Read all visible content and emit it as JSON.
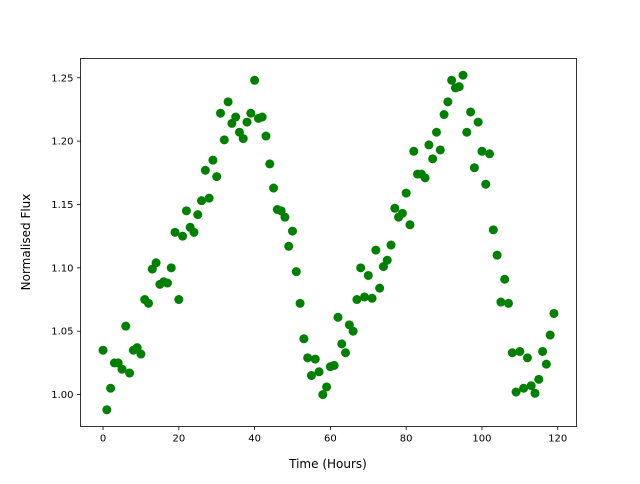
{
  "chart_data": {
    "type": "scatter",
    "title": "",
    "xlabel": "Time (Hours)",
    "ylabel": "Normalised Flux",
    "xlim": [
      -5.95,
      124.95
    ],
    "ylim": [
      0.9748,
      1.2652
    ],
    "xticks": [
      0,
      20,
      40,
      60,
      80,
      100,
      120
    ],
    "xtick_labels": [
      "0",
      "20",
      "40",
      "60",
      "80",
      "100",
      "120"
    ],
    "yticks": [
      1.0,
      1.05,
      1.1,
      1.15,
      1.2,
      1.25
    ],
    "ytick_labels": [
      "1.00",
      "1.05",
      "1.10",
      "1.15",
      "1.20",
      "1.25"
    ],
    "grid": false,
    "marker_color": "#008000",
    "x": [
      0,
      1,
      2,
      3,
      4,
      5,
      6,
      7,
      8,
      9,
      10,
      11,
      12,
      13,
      14,
      15,
      16,
      17,
      18,
      19,
      20,
      21,
      22,
      23,
      24,
      25,
      26,
      27,
      28,
      29,
      30,
      31,
      32,
      33,
      34,
      35,
      36,
      37,
      38,
      39,
      40,
      41,
      42,
      43,
      44,
      45,
      46,
      47,
      48,
      49,
      50,
      51,
      52,
      53,
      54,
      55,
      56,
      57,
      58,
      59,
      60,
      61,
      62,
      63,
      64,
      65,
      66,
      67,
      68,
      69,
      70,
      71,
      72,
      73,
      74,
      75,
      76,
      77,
      78,
      79,
      80,
      81,
      82,
      83,
      84,
      85,
      86,
      87,
      88,
      89,
      90,
      91,
      92,
      93,
      94,
      95,
      96,
      97,
      98,
      99,
      100,
      101,
      102,
      103,
      104,
      105,
      106,
      107,
      108,
      109,
      110,
      111,
      112,
      113,
      114,
      115,
      116,
      117,
      118,
      119
    ],
    "y": [
      1.035,
      0.988,
      1.005,
      1.025,
      1.025,
      1.02,
      1.054,
      1.017,
      1.035,
      1.037,
      1.032,
      1.075,
      1.072,
      1.099,
      1.104,
      1.087,
      1.089,
      1.088,
      1.1,
      1.128,
      1.075,
      1.125,
      1.145,
      1.132,
      1.128,
      1.142,
      1.153,
      1.177,
      1.155,
      1.185,
      1.172,
      1.222,
      1.201,
      1.231,
      1.214,
      1.219,
      1.207,
      1.202,
      1.215,
      1.222,
      1.248,
      1.218,
      1.219,
      1.204,
      1.182,
      1.163,
      1.146,
      1.145,
      1.14,
      1.117,
      1.129,
      1.097,
      1.072,
      1.044,
      1.029,
      1.015,
      1.028,
      1.018,
      1.0,
      1.006,
      1.022,
      1.023,
      1.061,
      1.04,
      1.033,
      1.055,
      1.05,
      1.075,
      1.1,
      1.077,
      1.094,
      1.076,
      1.114,
      1.084,
      1.101,
      1.106,
      1.118,
      1.147,
      1.14,
      1.143,
      1.159,
      1.134,
      1.192,
      1.174,
      1.174,
      1.171,
      1.197,
      1.186,
      1.207,
      1.193,
      1.221,
      1.231,
      1.248,
      1.242,
      1.243,
      1.252,
      1.207,
      1.223,
      1.179,
      1.215,
      1.192,
      1.166,
      1.19,
      1.13,
      1.11,
      1.073,
      1.091,
      1.072,
      1.033,
      1.002,
      1.034,
      1.005,
      1.029,
      1.007,
      1.001,
      1.012,
      1.034,
      1.024,
      1.047,
      1.064
    ]
  }
}
